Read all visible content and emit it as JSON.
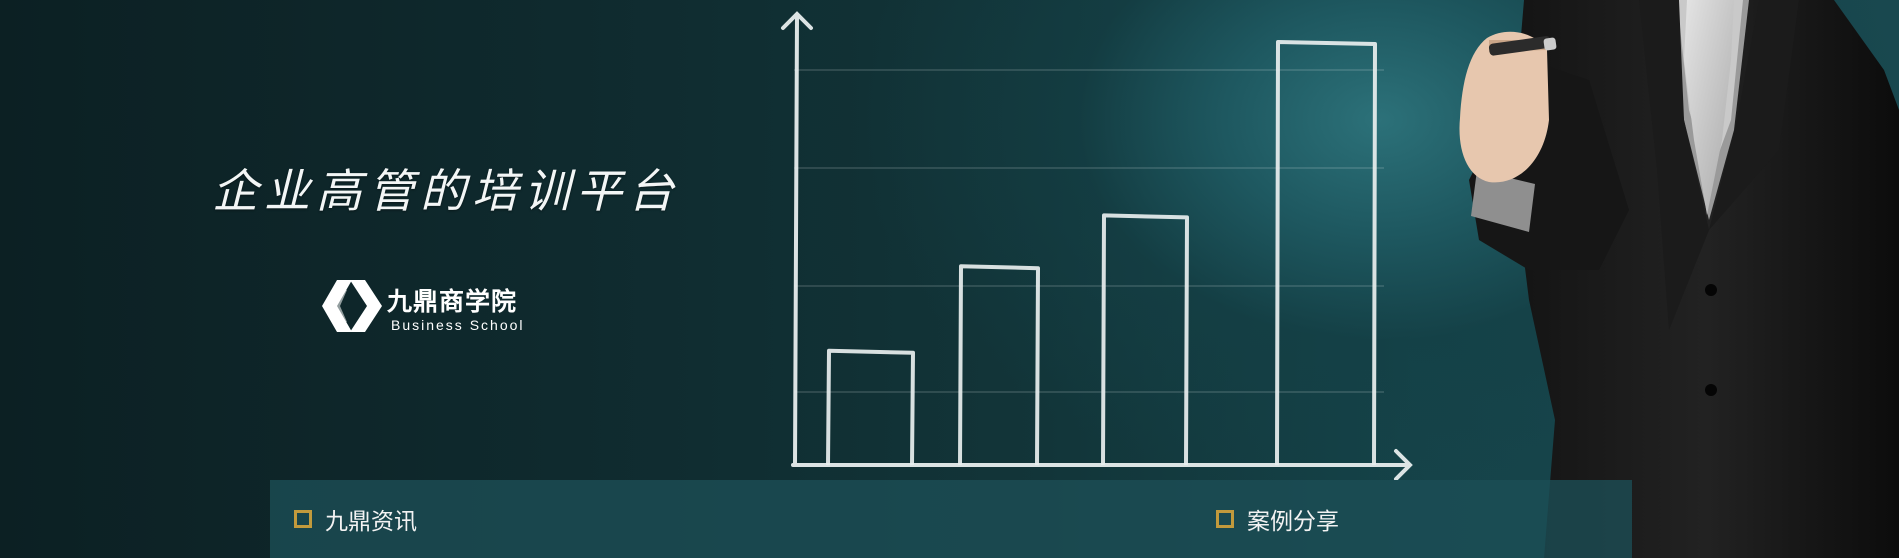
{
  "banner": {
    "tagline": "企业高管的培训平台",
    "logo": {
      "name": "九鼎商学院",
      "subtitle": "Business School"
    }
  },
  "chart_data": {
    "type": "bar",
    "categories": [
      "",
      "",
      "",
      ""
    ],
    "values": [
      27,
      47,
      59,
      100
    ],
    "title": "",
    "xlabel": "",
    "ylabel": "",
    "ylim": [
      0,
      110
    ],
    "style": "hand-drawn chalk outline bars",
    "grid": true
  },
  "tabs": [
    {
      "label": "九鼎资讯",
      "bullet_icon": "square-bullet-icon"
    },
    {
      "label": "案例分享",
      "bullet_icon": "square-bullet-icon"
    }
  ],
  "colors": {
    "background": "#0f2a2e",
    "glow": "#2c7179",
    "chalk": "#e9efef",
    "accent_bullet": "#c29a3c",
    "news_bar": "#1c4e56"
  }
}
